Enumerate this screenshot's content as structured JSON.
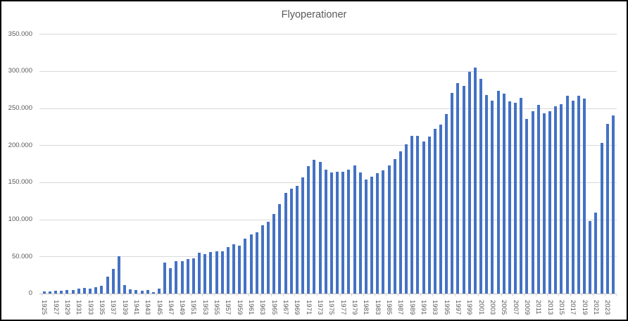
{
  "chart_title": "Flyoperationer",
  "colors": {
    "bar": "#4472c4",
    "gridline": "#d9d9d9",
    "axis_line": "#bfbfbf",
    "axis_text": "#595959",
    "title_text": "#595959",
    "background": "#ffffff",
    "frame_border": "#000000"
  },
  "y_axis": {
    "tick_labels": [
      "0",
      "50.000",
      "100.000",
      "150.000",
      "200.000",
      "250.000",
      "300.000",
      "350.000"
    ],
    "min": 0,
    "max": 350000,
    "step": 50000
  },
  "x_axis": {
    "first_label": 1925,
    "last_label": 2023,
    "label_every": 2
  },
  "chart_data": {
    "type": "bar",
    "title": "Flyoperationer",
    "xlabel": "",
    "ylabel": "",
    "ylim": [
      0,
      350000
    ],
    "grid": "horizontal",
    "legend": "none",
    "x": [
      1925,
      1926,
      1927,
      1928,
      1929,
      1930,
      1931,
      1932,
      1933,
      1934,
      1935,
      1936,
      1937,
      1938,
      1939,
      1940,
      1941,
      1942,
      1943,
      1944,
      1945,
      1946,
      1947,
      1948,
      1949,
      1950,
      1951,
      1952,
      1953,
      1954,
      1955,
      1956,
      1957,
      1958,
      1959,
      1960,
      1961,
      1962,
      1963,
      1964,
      1965,
      1966,
      1967,
      1968,
      1969,
      1970,
      1971,
      1972,
      1973,
      1974,
      1975,
      1976,
      1977,
      1978,
      1979,
      1980,
      1981,
      1982,
      1983,
      1984,
      1985,
      1986,
      1987,
      1988,
      1989,
      1990,
      1991,
      1992,
      1993,
      1994,
      1995,
      1996,
      1997,
      1998,
      1999,
      2000,
      2001,
      2002,
      2003,
      2004,
      2005,
      2006,
      2007,
      2008,
      2009,
      2010,
      2011,
      2012,
      2013,
      2014,
      2015,
      2016,
      2017,
      2018,
      2019,
      2020,
      2021,
      2022,
      2023,
      2024
    ],
    "values": [
      2500,
      3000,
      3500,
      3800,
      4200,
      5000,
      6300,
      7000,
      6800,
      8500,
      10200,
      22800,
      33000,
      50400,
      11700,
      5400,
      4500,
      4000,
      4200,
      2200,
      6700,
      41500,
      34000,
      43700,
      43500,
      46600,
      47500,
      55200,
      53500,
      55800,
      56400,
      57300,
      62500,
      66600,
      64000,
      73500,
      79200,
      82500,
      92000,
      96500,
      106800,
      120000,
      135300,
      141700,
      144800,
      156900,
      171800,
      180400,
      177500,
      167100,
      162900,
      163900,
      163900,
      167100,
      172800,
      162900,
      153800,
      157900,
      162300,
      166400,
      172800,
      181400,
      191800,
      201000,
      213000,
      213000,
      205100,
      211400,
      221600,
      227900,
      242200,
      270100,
      283400,
      280200,
      298600,
      304300,
      289800,
      267600,
      259600,
      273200,
      269400,
      258700,
      257400,
      263700,
      235500,
      245400,
      254200,
      243200,
      245700,
      252300,
      255500,
      266300,
      259600,
      266300,
      263100,
      98000,
      109400,
      202600,
      229000,
      240200
    ]
  }
}
